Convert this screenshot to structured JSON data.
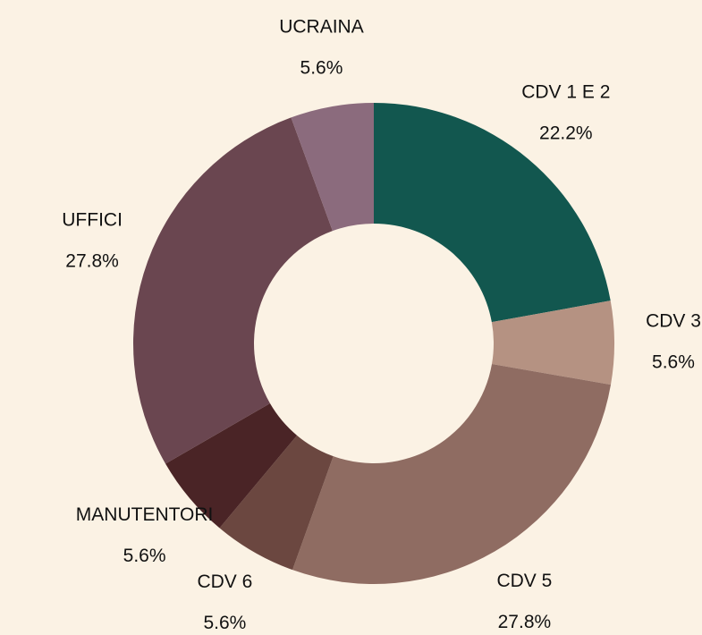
{
  "chart_data": {
    "type": "donut",
    "categories": [
      "CDV 1 E 2",
      "CDV 3",
      "CDV 5",
      "CDV 6",
      "MANUTENTORI",
      "UFFICI",
      "UCRAINA"
    ],
    "values": [
      22.2,
      5.6,
      27.8,
      5.6,
      5.6,
      27.8,
      5.6
    ],
    "value_labels": [
      "22.2%",
      "5.6%",
      "27.8%",
      "5.6%",
      "5.6%",
      "27.8%",
      "5.6%"
    ],
    "colors": [
      "#12574f",
      "#b59282",
      "#8f6c62",
      "#6b4740",
      "#4a2426",
      "#6a4650",
      "#8b6b7d"
    ]
  }
}
